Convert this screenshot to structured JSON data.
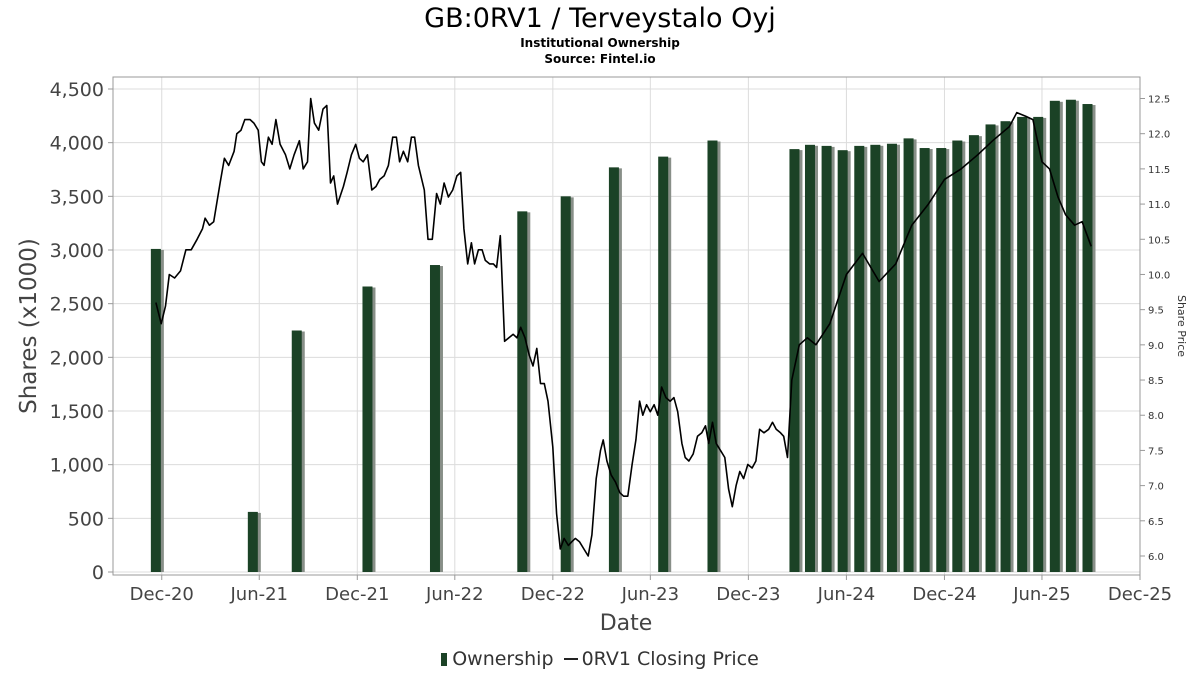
{
  "chart_data": {
    "type": "bar",
    "title": "GB:0RV1 / Terveystalo Oyj",
    "subtitle": "Institutional Ownership",
    "source": "Source: Fintel.io",
    "xlabel": "Date",
    "ylabel": "Shares (x1000)",
    "y2label": "Share Price",
    "ylim": [
      0,
      4500
    ],
    "y2lim": [
      5.8,
      12.6
    ],
    "xlim": [
      "2020-09-01",
      "2025-12-01"
    ],
    "x_ticks": [
      {
        "date": "2020-12-01",
        "label": "Dec-20"
      },
      {
        "date": "2021-06-01",
        "label": "Jun-21"
      },
      {
        "date": "2021-12-01",
        "label": "Dec-21"
      },
      {
        "date": "2022-06-01",
        "label": "Jun-22"
      },
      {
        "date": "2022-12-01",
        "label": "Dec-22"
      },
      {
        "date": "2023-06-01",
        "label": "Jun-23"
      },
      {
        "date": "2023-12-01",
        "label": "Dec-23"
      },
      {
        "date": "2024-06-01",
        "label": "Jun-24"
      },
      {
        "date": "2024-12-01",
        "label": "Dec-24"
      },
      {
        "date": "2025-06-01",
        "label": "Jun-25"
      },
      {
        "date": "2025-12-01",
        "label": "Dec-25"
      }
    ],
    "y_ticks": [
      {
        "value": 0,
        "label": "0"
      },
      {
        "value": 500,
        "label": "500"
      },
      {
        "value": 1000,
        "label": "1,000"
      },
      {
        "value": 1500,
        "label": "1,500"
      },
      {
        "value": 2000,
        "label": "2,000"
      },
      {
        "value": 2500,
        "label": "2,500"
      },
      {
        "value": 3000,
        "label": "3,000"
      },
      {
        "value": 3500,
        "label": "3,500"
      },
      {
        "value": 4000,
        "label": "4,000"
      },
      {
        "value": 4500,
        "label": "4,500"
      }
    ],
    "y2_ticks": [
      {
        "value": 6.0,
        "label": "6.0"
      },
      {
        "value": 6.5,
        "label": "6.5"
      },
      {
        "value": 7.0,
        "label": "7.0"
      },
      {
        "value": 7.5,
        "label": "7.5"
      },
      {
        "value": 8.0,
        "label": "8.0"
      },
      {
        "value": 8.5,
        "label": "8.5"
      },
      {
        "value": 9.0,
        "label": "9.0"
      },
      {
        "value": 9.5,
        "label": "9.5"
      },
      {
        "value": 10.0,
        "label": "10.0"
      },
      {
        "value": 10.5,
        "label": "10.5"
      },
      {
        "value": 11.0,
        "label": "11.0"
      },
      {
        "value": 11.5,
        "label": "11.5"
      },
      {
        "value": 12.0,
        "label": "12.0"
      },
      {
        "value": 12.5,
        "label": "12.5"
      }
    ],
    "grid": true,
    "legend_position": "bottom",
    "bar_color": "#1b4226",
    "bar_shadow_color": "#888f88",
    "line_color": "#000000",
    "series": [
      {
        "name": "Ownership",
        "kind": "bar",
        "points": [
          {
            "x": "2020-11-20",
            "y": 3010
          },
          {
            "x": "2021-05-20",
            "y": 560
          },
          {
            "x": "2021-08-10",
            "y": 2250
          },
          {
            "x": "2021-12-20",
            "y": 2660
          },
          {
            "x": "2022-04-25",
            "y": 2860
          },
          {
            "x": "2022-10-05",
            "y": 3360
          },
          {
            "x": "2022-12-25",
            "y": 3500
          },
          {
            "x": "2023-03-25",
            "y": 3770
          },
          {
            "x": "2023-06-25",
            "y": 3870
          },
          {
            "x": "2023-09-25",
            "y": 4020
          },
          {
            "x": "2024-02-25",
            "y": 3940
          },
          {
            "x": "2024-03-25",
            "y": 3980
          },
          {
            "x": "2024-04-25",
            "y": 3970
          },
          {
            "x": "2024-05-25",
            "y": 3930
          },
          {
            "x": "2024-06-25",
            "y": 3970
          },
          {
            "x": "2024-07-25",
            "y": 3980
          },
          {
            "x": "2024-08-25",
            "y": 3990
          },
          {
            "x": "2024-09-25",
            "y": 4040
          },
          {
            "x": "2024-10-25",
            "y": 3950
          },
          {
            "x": "2024-11-25",
            "y": 3950
          },
          {
            "x": "2024-12-25",
            "y": 4020
          },
          {
            "x": "2025-01-25",
            "y": 4070
          },
          {
            "x": "2025-02-25",
            "y": 4170
          },
          {
            "x": "2025-03-25",
            "y": 4200
          },
          {
            "x": "2025-04-25",
            "y": 4240
          },
          {
            "x": "2025-05-25",
            "y": 4240
          },
          {
            "x": "2025-06-25",
            "y": 4390
          },
          {
            "x": "2025-07-25",
            "y": 4400
          },
          {
            "x": "2025-08-25",
            "y": 4360
          }
        ]
      },
      {
        "name": "0RV1 Closing Price",
        "kind": "line",
        "points": [
          {
            "x": "2020-11-20",
            "y": 9.6
          },
          {
            "x": "2020-11-30",
            "y": 9.3
          },
          {
            "x": "2020-12-08",
            "y": 9.55
          },
          {
            "x": "2020-12-15",
            "y": 10.0
          },
          {
            "x": "2020-12-25",
            "y": 9.95
          },
          {
            "x": "2021-01-05",
            "y": 10.05
          },
          {
            "x": "2021-01-15",
            "y": 10.35
          },
          {
            "x": "2021-01-25",
            "y": 10.35
          },
          {
            "x": "2021-02-05",
            "y": 10.5
          },
          {
            "x": "2021-02-15",
            "y": 10.65
          },
          {
            "x": "2021-02-20",
            "y": 10.8
          },
          {
            "x": "2021-02-28",
            "y": 10.7
          },
          {
            "x": "2021-03-08",
            "y": 10.75
          },
          {
            "x": "2021-03-20",
            "y": 11.3
          },
          {
            "x": "2021-03-28",
            "y": 11.65
          },
          {
            "x": "2021-04-05",
            "y": 11.55
          },
          {
            "x": "2021-04-15",
            "y": 11.75
          },
          {
            "x": "2021-04-20",
            "y": 12.0
          },
          {
            "x": "2021-04-28",
            "y": 12.05
          },
          {
            "x": "2021-05-05",
            "y": 12.2
          },
          {
            "x": "2021-05-15",
            "y": 12.2
          },
          {
            "x": "2021-05-22",
            "y": 12.15
          },
          {
            "x": "2021-05-30",
            "y": 12.05
          },
          {
            "x": "2021-06-05",
            "y": 11.6
          },
          {
            "x": "2021-06-10",
            "y": 11.55
          },
          {
            "x": "2021-06-18",
            "y": 11.95
          },
          {
            "x": "2021-06-25",
            "y": 11.85
          },
          {
            "x": "2021-07-02",
            "y": 12.2
          },
          {
            "x": "2021-07-10",
            "y": 11.85
          },
          {
            "x": "2021-07-20",
            "y": 11.7
          },
          {
            "x": "2021-07-28",
            "y": 11.5
          },
          {
            "x": "2021-08-05",
            "y": 11.7
          },
          {
            "x": "2021-08-15",
            "y": 11.9
          },
          {
            "x": "2021-08-22",
            "y": 11.5
          },
          {
            "x": "2021-08-30",
            "y": 11.6
          },
          {
            "x": "2021-09-05",
            "y": 12.5
          },
          {
            "x": "2021-09-12",
            "y": 12.15
          },
          {
            "x": "2021-09-20",
            "y": 12.05
          },
          {
            "x": "2021-09-28",
            "y": 12.35
          },
          {
            "x": "2021-10-05",
            "y": 12.4
          },
          {
            "x": "2021-10-12",
            "y": 11.3
          },
          {
            "x": "2021-10-18",
            "y": 11.4
          },
          {
            "x": "2021-10-25",
            "y": 11.0
          },
          {
            "x": "2021-11-05",
            "y": 11.25
          },
          {
            "x": "2021-11-12",
            "y": 11.45
          },
          {
            "x": "2021-11-20",
            "y": 11.7
          },
          {
            "x": "2021-11-28",
            "y": 11.85
          },
          {
            "x": "2021-12-05",
            "y": 11.65
          },
          {
            "x": "2021-12-12",
            "y": 11.6
          },
          {
            "x": "2021-12-20",
            "y": 11.7
          },
          {
            "x": "2021-12-28",
            "y": 11.2
          },
          {
            "x": "2022-01-05",
            "y": 11.25
          },
          {
            "x": "2022-01-12",
            "y": 11.35
          },
          {
            "x": "2022-01-20",
            "y": 11.4
          },
          {
            "x": "2022-01-28",
            "y": 11.55
          },
          {
            "x": "2022-02-05",
            "y": 11.95
          },
          {
            "x": "2022-02-12",
            "y": 11.95
          },
          {
            "x": "2022-02-18",
            "y": 11.6
          },
          {
            "x": "2022-02-25",
            "y": 11.75
          },
          {
            "x": "2022-03-05",
            "y": 11.6
          },
          {
            "x": "2022-03-12",
            "y": 11.95
          },
          {
            "x": "2022-03-18",
            "y": 11.95
          },
          {
            "x": "2022-03-25",
            "y": 11.55
          },
          {
            "x": "2022-04-05",
            "y": 11.2
          },
          {
            "x": "2022-04-12",
            "y": 10.5
          },
          {
            "x": "2022-04-20",
            "y": 10.5
          },
          {
            "x": "2022-04-28",
            "y": 11.15
          },
          {
            "x": "2022-05-05",
            "y": 11.0
          },
          {
            "x": "2022-05-12",
            "y": 11.3
          },
          {
            "x": "2022-05-20",
            "y": 11.1
          },
          {
            "x": "2022-05-28",
            "y": 11.2
          },
          {
            "x": "2022-06-05",
            "y": 11.4
          },
          {
            "x": "2022-06-12",
            "y": 11.45
          },
          {
            "x": "2022-06-18",
            "y": 10.65
          },
          {
            "x": "2022-06-25",
            "y": 10.15
          },
          {
            "x": "2022-07-02",
            "y": 10.45
          },
          {
            "x": "2022-07-08",
            "y": 10.15
          },
          {
            "x": "2022-07-15",
            "y": 10.35
          },
          {
            "x": "2022-07-22",
            "y": 10.35
          },
          {
            "x": "2022-07-28",
            "y": 10.2
          },
          {
            "x": "2022-08-05",
            "y": 10.15
          },
          {
            "x": "2022-08-12",
            "y": 10.15
          },
          {
            "x": "2022-08-18",
            "y": 10.1
          },
          {
            "x": "2022-08-25",
            "y": 10.55
          },
          {
            "x": "2022-09-02",
            "y": 9.05
          },
          {
            "x": "2022-09-10",
            "y": 9.1
          },
          {
            "x": "2022-09-18",
            "y": 9.15
          },
          {
            "x": "2022-09-25",
            "y": 9.1
          },
          {
            "x": "2022-10-02",
            "y": 9.25
          },
          {
            "x": "2022-10-10",
            "y": 9.1
          },
          {
            "x": "2022-10-18",
            "y": 8.85
          },
          {
            "x": "2022-10-25",
            "y": 8.7
          },
          {
            "x": "2022-11-01",
            "y": 8.95
          },
          {
            "x": "2022-11-08",
            "y": 8.45
          },
          {
            "x": "2022-11-15",
            "y": 8.45
          },
          {
            "x": "2022-11-22",
            "y": 8.2
          },
          {
            "x": "2022-12-01",
            "y": 7.55
          },
          {
            "x": "2022-12-08",
            "y": 6.6
          },
          {
            "x": "2022-12-15",
            "y": 6.1
          },
          {
            "x": "2022-12-22",
            "y": 6.25
          },
          {
            "x": "2022-12-30",
            "y": 6.15
          },
          {
            "x": "2023-01-05",
            "y": 6.2
          },
          {
            "x": "2023-01-12",
            "y": 6.25
          },
          {
            "x": "2023-01-20",
            "y": 6.2
          },
          {
            "x": "2023-01-28",
            "y": 6.1
          },
          {
            "x": "2023-02-05",
            "y": 6.0
          },
          {
            "x": "2023-02-12",
            "y": 6.3
          },
          {
            "x": "2023-02-20",
            "y": 7.1
          },
          {
            "x": "2023-02-28",
            "y": 7.5
          },
          {
            "x": "2023-03-05",
            "y": 7.65
          },
          {
            "x": "2023-03-12",
            "y": 7.35
          },
          {
            "x": "2023-03-20",
            "y": 7.15
          },
          {
            "x": "2023-03-28",
            "y": 7.05
          },
          {
            "x": "2023-04-05",
            "y": 6.9
          },
          {
            "x": "2023-04-12",
            "y": 6.85
          },
          {
            "x": "2023-04-20",
            "y": 6.85
          },
          {
            "x": "2023-04-28",
            "y": 7.3
          },
          {
            "x": "2023-05-05",
            "y": 7.65
          },
          {
            "x": "2023-05-12",
            "y": 8.2
          },
          {
            "x": "2023-05-18",
            "y": 8.0
          },
          {
            "x": "2023-05-25",
            "y": 8.15
          },
          {
            "x": "2023-06-01",
            "y": 8.05
          },
          {
            "x": "2023-06-08",
            "y": 8.15
          },
          {
            "x": "2023-06-15",
            "y": 8.0
          },
          {
            "x": "2023-06-22",
            "y": 8.4
          },
          {
            "x": "2023-06-30",
            "y": 8.25
          },
          {
            "x": "2023-07-08",
            "y": 8.2
          },
          {
            "x": "2023-07-15",
            "y": 8.25
          },
          {
            "x": "2023-07-22",
            "y": 8.05
          },
          {
            "x": "2023-07-30",
            "y": 7.6
          },
          {
            "x": "2023-08-05",
            "y": 7.4
          },
          {
            "x": "2023-08-12",
            "y": 7.35
          },
          {
            "x": "2023-08-20",
            "y": 7.45
          },
          {
            "x": "2023-08-28",
            "y": 7.7
          },
          {
            "x": "2023-09-05",
            "y": 7.75
          },
          {
            "x": "2023-09-12",
            "y": 7.85
          },
          {
            "x": "2023-09-18",
            "y": 7.6
          },
          {
            "x": "2023-09-25",
            "y": 7.9
          },
          {
            "x": "2023-10-02",
            "y": 7.6
          },
          {
            "x": "2023-10-10",
            "y": 7.5
          },
          {
            "x": "2023-10-18",
            "y": 7.4
          },
          {
            "x": "2023-10-25",
            "y": 6.95
          },
          {
            "x": "2023-11-01",
            "y": 6.7
          },
          {
            "x": "2023-11-08",
            "y": 7.0
          },
          {
            "x": "2023-11-15",
            "y": 7.2
          },
          {
            "x": "2023-11-22",
            "y": 7.1
          },
          {
            "x": "2023-11-30",
            "y": 7.3
          },
          {
            "x": "2023-12-08",
            "y": 7.25
          },
          {
            "x": "2023-12-15",
            "y": 7.35
          },
          {
            "x": "2023-12-22",
            "y": 7.8
          },
          {
            "x": "2023-12-30",
            "y": 7.75
          },
          {
            "x": "2024-01-08",
            "y": 7.8
          },
          {
            "x": "2024-01-15",
            "y": 7.9
          },
          {
            "x": "2024-01-22",
            "y": 7.8
          },
          {
            "x": "2024-01-30",
            "y": 7.75
          },
          {
            "x": "2024-02-05",
            "y": 7.7
          },
          {
            "x": "2024-02-12",
            "y": 7.4
          },
          {
            "x": "2024-02-20",
            "y": 8.5
          },
          {
            "x": "2024-03-05",
            "y": 9.0
          },
          {
            "x": "2024-03-20",
            "y": 9.1
          },
          {
            "x": "2024-04-05",
            "y": 9.0
          },
          {
            "x": "2024-05-01",
            "y": 9.3
          },
          {
            "x": "2024-06-01",
            "y": 10.0
          },
          {
            "x": "2024-07-01",
            "y": 10.3
          },
          {
            "x": "2024-08-01",
            "y": 9.9
          },
          {
            "x": "2024-09-01",
            "y": 10.15
          },
          {
            "x": "2024-10-01",
            "y": 10.7
          },
          {
            "x": "2024-11-01",
            "y": 11.0
          },
          {
            "x": "2024-12-01",
            "y": 11.35
          },
          {
            "x": "2025-01-01",
            "y": 11.5
          },
          {
            "x": "2025-02-01",
            "y": 11.7
          },
          {
            "x": "2025-03-01",
            "y": 11.9
          },
          {
            "x": "2025-04-01",
            "y": 12.1
          },
          {
            "x": "2025-04-15",
            "y": 12.3
          },
          {
            "x": "2025-05-01",
            "y": 12.25
          },
          {
            "x": "2025-05-15",
            "y": 12.2
          },
          {
            "x": "2025-06-01",
            "y": 11.6
          },
          {
            "x": "2025-06-15",
            "y": 11.5
          },
          {
            "x": "2025-07-01",
            "y": 11.1
          },
          {
            "x": "2025-07-15",
            "y": 10.85
          },
          {
            "x": "2025-08-01",
            "y": 10.7
          },
          {
            "x": "2025-08-15",
            "y": 10.75
          },
          {
            "x": "2025-09-01",
            "y": 10.4
          }
        ]
      }
    ]
  }
}
